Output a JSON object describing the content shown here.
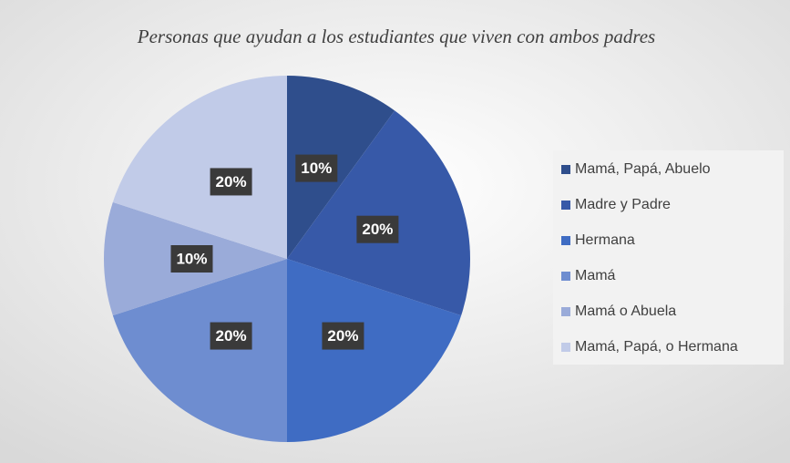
{
  "chart_data": {
    "type": "pie",
    "title": "Personas que ayudan a los estudiantes que viven con ambos padres",
    "categories": [
      "Mamá, Papá, Abuelo",
      "Madre y Padre",
      "Hermana",
      "Mamá",
      "Mamá o Abuela",
      "Mamá, Papá, o Hermana"
    ],
    "values": [
      10,
      20,
      20,
      20,
      10,
      20
    ],
    "value_labels": [
      "10%",
      "20%",
      "20%",
      "20%",
      "10%",
      "20%"
    ],
    "colors": [
      "#2f4e8c",
      "#3759a8",
      "#3f6cc3",
      "#6e8dd0",
      "#9aabd9",
      "#c1cbe8"
    ],
    "legend": "right"
  }
}
